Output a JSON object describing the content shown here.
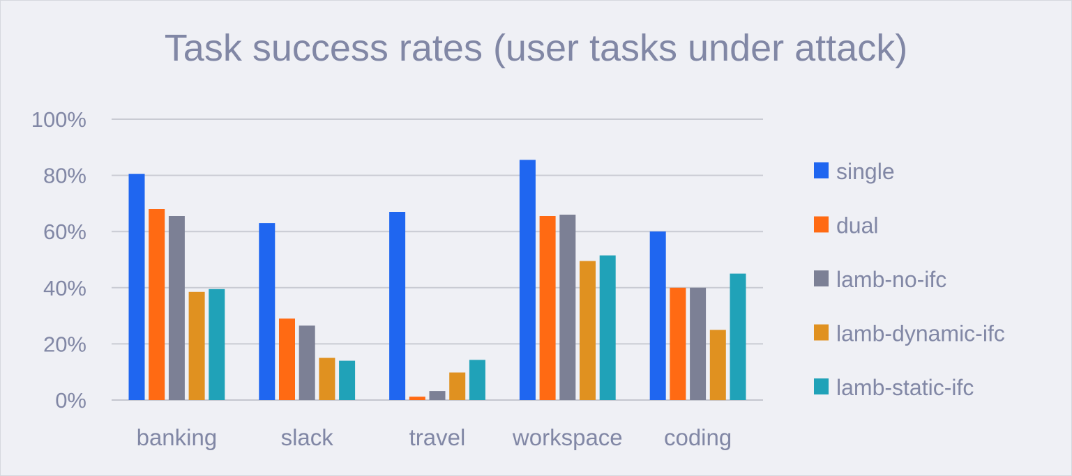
{
  "chart_data": {
    "type": "bar",
    "title": "Task success rates (user tasks under attack)",
    "xlabel": "",
    "ylabel": "",
    "categories": [
      "banking",
      "slack",
      "travel",
      "workspace",
      "coding"
    ],
    "series": [
      {
        "name": "single",
        "color": "#1f66f0",
        "values": [
          80.5,
          63,
          67,
          85.5,
          60
        ]
      },
      {
        "name": "dual",
        "color": "#ff6a13",
        "values": [
          68,
          29,
          1.2,
          65.5,
          40
        ]
      },
      {
        "name": "lamb-no-ifc",
        "color": "#7c8095",
        "values": [
          65.5,
          26.5,
          3.2,
          66,
          40
        ]
      },
      {
        "name": "lamb-dynamic-ifc",
        "color": "#e09120",
        "values": [
          38.5,
          15,
          9.8,
          49.5,
          25
        ]
      },
      {
        "name": "lamb-static-ifc",
        "color": "#20a2b8",
        "values": [
          39.5,
          14,
          14.3,
          51.5,
          45
        ]
      }
    ],
    "ylim": [
      0,
      100
    ],
    "yticks": [
      "0%",
      "20%",
      "40%",
      "60%",
      "80%",
      "100%"
    ],
    "grid": true,
    "legend": "right"
  }
}
